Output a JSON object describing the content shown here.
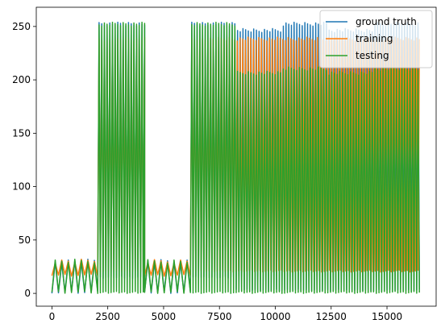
{
  "chart_data": {
    "type": "line",
    "title": "",
    "xlabel": "",
    "ylabel": "",
    "xlim": [
      -700,
      17200
    ],
    "ylim": [
      -12,
      268
    ],
    "xticks": [
      0,
      2500,
      5000,
      7500,
      10000,
      12500,
      15000
    ],
    "yticks": [
      0,
      50,
      100,
      150,
      200,
      250
    ],
    "grid": false,
    "legend_position": "upper right",
    "series": [
      {
        "name": "ground truth",
        "color": "#1f77b4",
        "description": "dense oscillating signal; approximate envelope per segment",
        "segments": [
          {
            "x_start": 0,
            "x_end": 2050,
            "min": 0,
            "max": 32,
            "period": 300
          },
          {
            "x_start": 2050,
            "x_end": 4150,
            "min": 14,
            "max": 254,
            "period": 120
          },
          {
            "x_start": 4150,
            "x_end": 6200,
            "min": 0,
            "max": 32,
            "period": 300
          },
          {
            "x_start": 6200,
            "x_end": 8250,
            "min": 14,
            "max": 254,
            "period": 120
          },
          {
            "x_start": 8250,
            "x_end": 10300,
            "min": 2,
            "max": 248,
            "period": 120
          },
          {
            "x_start": 10300,
            "x_end": 12350,
            "min": 2,
            "max": 254,
            "period": 120
          },
          {
            "x_start": 12350,
            "x_end": 14400,
            "min": 2,
            "max": 248,
            "period": 120
          },
          {
            "x_start": 14400,
            "x_end": 16450,
            "min": 2,
            "max": 254,
            "period": 120
          }
        ]
      },
      {
        "name": "training",
        "color": "#ff7f0e",
        "description": "mostly overdrawn by testing; visible at start (~18) and near x=4000 (~28)",
        "segments": [
          {
            "x_start": 0,
            "x_end": 2050,
            "min": 16,
            "max": 32,
            "period": 300
          },
          {
            "x_start": 2050,
            "x_end": 4150,
            "min": 20,
            "max": 240,
            "period": 120
          },
          {
            "x_start": 4150,
            "x_end": 6200,
            "min": 16,
            "max": 32,
            "period": 300
          },
          {
            "x_start": 6200,
            "x_end": 16450,
            "min": 20,
            "max": 240,
            "period": 120
          }
        ]
      },
      {
        "name": "testing",
        "color": "#2ca02c",
        "description": "dense oscillating signal; approximate envelope per segment",
        "segments": [
          {
            "x_start": 0,
            "x_end": 2050,
            "min": 0,
            "max": 32,
            "period": 300
          },
          {
            "x_start": 2050,
            "x_end": 4150,
            "min": 0,
            "max": 254,
            "period": 120
          },
          {
            "x_start": 4150,
            "x_end": 6200,
            "min": 0,
            "max": 32,
            "period": 300
          },
          {
            "x_start": 6200,
            "x_end": 8250,
            "min": 0,
            "max": 254,
            "period": 120
          },
          {
            "x_start": 8250,
            "x_end": 10300,
            "min": 0,
            "max": 208,
            "period": 120
          },
          {
            "x_start": 10300,
            "x_end": 12350,
            "min": 0,
            "max": 212,
            "period": 120
          },
          {
            "x_start": 12350,
            "x_end": 14400,
            "min": 0,
            "max": 208,
            "period": 120
          },
          {
            "x_start": 14400,
            "x_end": 16450,
            "min": 0,
            "max": 212,
            "period": 120
          }
        ]
      }
    ]
  }
}
